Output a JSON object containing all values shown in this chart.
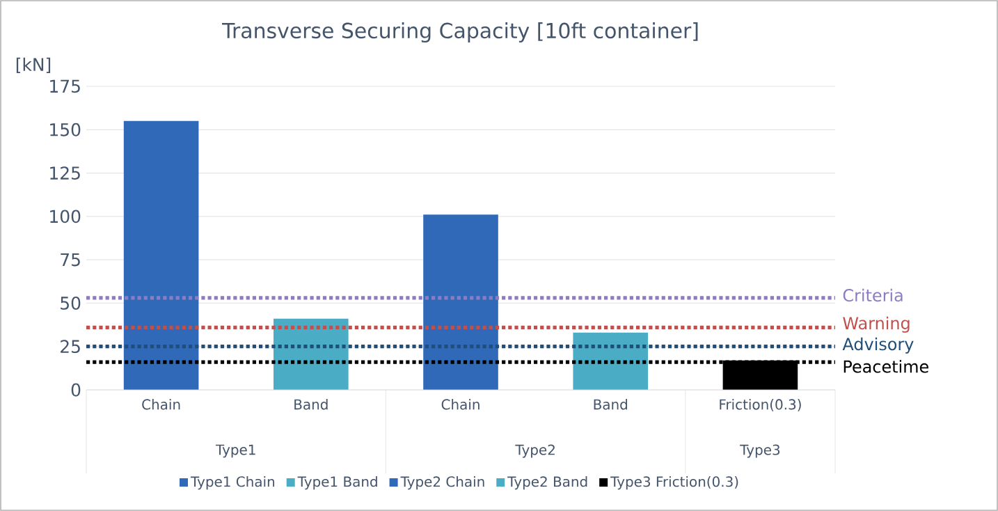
{
  "chart_data": {
    "type": "bar",
    "title": "Transverse Securing Capacity [10ft container]",
    "ylabel": "[kN]",
    "categories": [
      "Chain",
      "Band",
      "Chain",
      "Band",
      "Friction(0.3)"
    ],
    "annotations": [
      "Type1",
      "Type2",
      "Type3"
    ],
    "series": [
      {
        "name": "Type1 Chain",
        "color": "#2f69b8",
        "values": [
          155,
          null,
          null,
          null,
          null
        ]
      },
      {
        "name": "Type1 Band",
        "color": "#4bacc6",
        "values": [
          null,
          41,
          null,
          null,
          null
        ]
      },
      {
        "name": "Type2 Chain",
        "color": "#2f69b8",
        "values": [
          null,
          null,
          101,
          null,
          null
        ]
      },
      {
        "name": "Type2 Band",
        "color": "#4bacc6",
        "values": [
          null,
          null,
          null,
          33,
          null
        ]
      },
      {
        "name": "Type3 Friction(0.3)",
        "color": "#000000",
        "values": [
          null,
          null,
          null,
          null,
          17
        ]
      }
    ],
    "ylim": [
      0,
      175
    ],
    "yticks": [
      0,
      25,
      50,
      75,
      100,
      125,
      150,
      175
    ],
    "grid": "y",
    "legend": "bottom",
    "ref_lines": [
      {
        "axis": "y",
        "value": 53,
        "label": "Criteria",
        "color": "#8e7cc3",
        "line_style": "dotted"
      },
      {
        "axis": "y",
        "value": 36,
        "label": "Warning",
        "color": "#c0504d",
        "line_style": "dotted"
      },
      {
        "axis": "y",
        "value": 25,
        "label": "Advisory",
        "color": "#1f4e79",
        "line_style": "dotted"
      },
      {
        "axis": "y",
        "value": 16,
        "label": "Peacetime",
        "color": "#000000",
        "line_style": "dotted"
      }
    ]
  }
}
